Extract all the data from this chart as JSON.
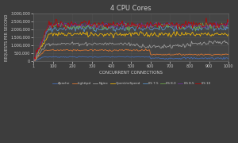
{
  "title": "4 CPU Cores",
  "xlabel": "CONCURRENT CONNECTIONS",
  "ylabel": "REQUESTS PER SECOND",
  "background_color": "#3d3d3d",
  "plot_bg_color": "#454545",
  "grid_color": "#555555",
  "text_color": "#cccccc",
  "x_ticks": [
    1,
    100,
    200,
    300,
    400,
    500,
    600,
    700,
    800,
    900,
    1000
  ],
  "ylim": [
    0,
    3000000
  ],
  "y_ticks": [
    0,
    500000,
    1000000,
    1500000,
    2000000,
    2500000,
    3000000
  ],
  "series": {
    "Apache": {
      "color": "#4472c4"
    },
    "Lighttpd": {
      "color": "#ed7d31"
    },
    "Nginx": {
      "color": "#a5a5a5"
    },
    "OpenLiteSpeed": {
      "color": "#ffc000"
    },
    "IIS 7.5": {
      "color": "#5b9bd5"
    },
    "IIS 8.0": {
      "color": "#70ad47"
    },
    "IIS 8.5": {
      "color": "#7030a0"
    },
    "IIS 10": {
      "color": "#c00000"
    }
  },
  "legend_entries": [
    "Apache",
    "Lighttpd",
    "Nginx",
    "OpenLiteSpeed",
    "IIS 7.5",
    "IIS 8.0",
    "IIS 8.5",
    "IIS 10"
  ]
}
